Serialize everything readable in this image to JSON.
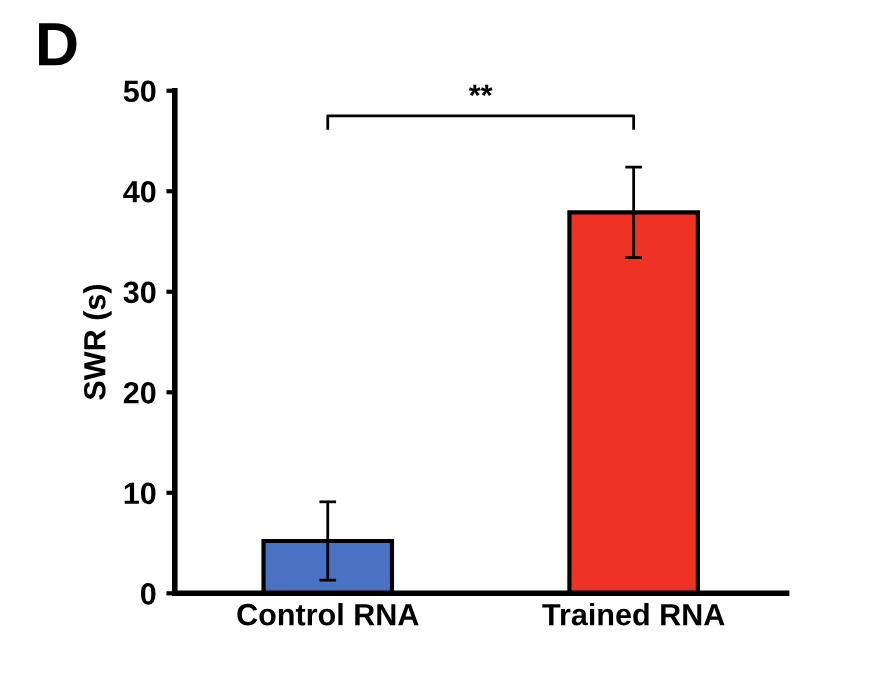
{
  "chart_data": {
    "type": "bar",
    "title": "D",
    "ylabel": "SWR (s)",
    "categories": [
      "Control RNA",
      "Trained RNA"
    ],
    "values": [
      5.2,
      37.9
    ],
    "errors": [
      3.9,
      4.5
    ],
    "colors": [
      "#4a72c4",
      "#ee3224"
    ],
    "ylim": [
      0,
      50
    ],
    "yticks": [
      0,
      10,
      20,
      30,
      40,
      50
    ],
    "annotations": [
      "**"
    ],
    "grid": false,
    "legend": false
  }
}
